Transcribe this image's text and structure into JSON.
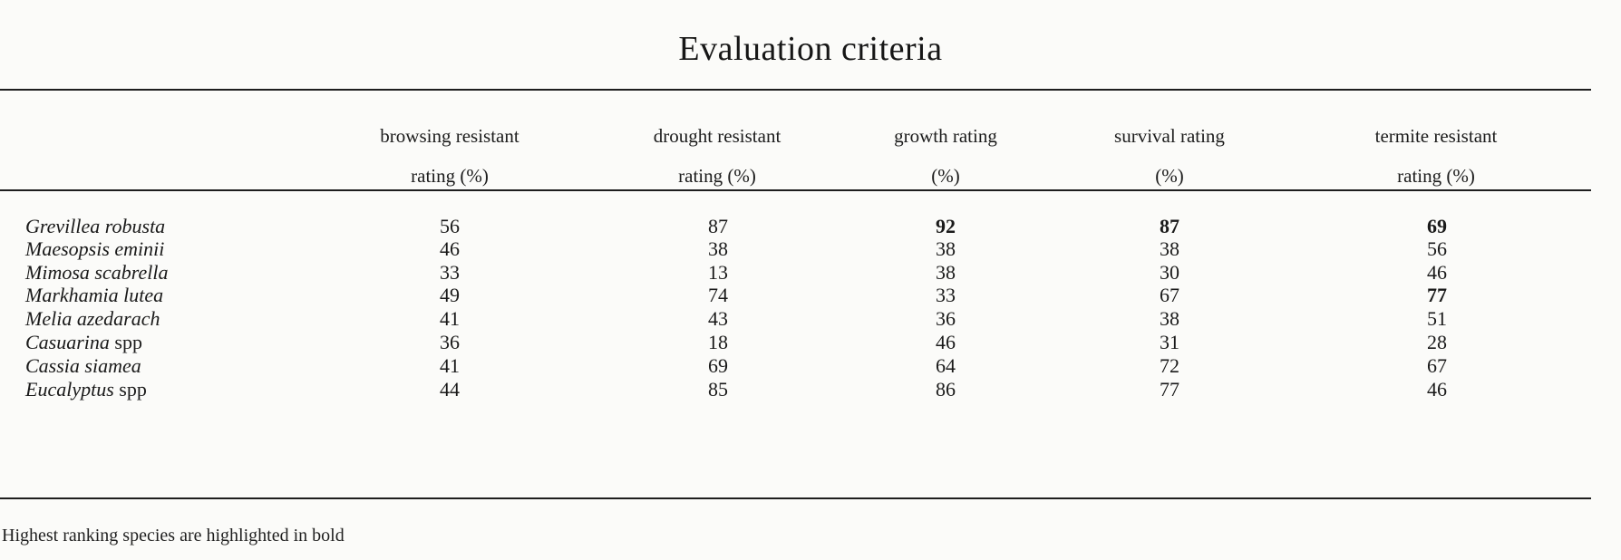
{
  "table": {
    "caption": "Evaluation criteria",
    "columns": [
      {
        "line1": "browsing resistant",
        "line2": "rating (%)"
      },
      {
        "line1": "drought resistant",
        "line2": "rating (%)"
      },
      {
        "line1": "growth rating",
        "line2": "(%)"
      },
      {
        "line1": "survival rating",
        "line2": "(%)"
      },
      {
        "line1": "termite resistant",
        "line2": "rating (%)"
      }
    ],
    "rows": [
      {
        "genus": "Grevillea robusta",
        "suffix": "",
        "values": [
          "56",
          "87",
          "92",
          "87",
          "69"
        ],
        "bold": [
          false,
          false,
          true,
          true,
          true
        ]
      },
      {
        "genus": "Maesopsis eminii",
        "suffix": "",
        "values": [
          "46",
          "38",
          "38",
          "38",
          "56"
        ],
        "bold": [
          false,
          false,
          false,
          false,
          false
        ]
      },
      {
        "genus": "Mimosa scabrella",
        "suffix": "",
        "values": [
          "33",
          "13",
          "38",
          "30",
          "46"
        ],
        "bold": [
          false,
          false,
          false,
          false,
          false
        ]
      },
      {
        "genus": "Markhamia lutea",
        "suffix": "",
        "values": [
          "49",
          "74",
          "33",
          "67",
          "77"
        ],
        "bold": [
          false,
          false,
          false,
          false,
          true
        ]
      },
      {
        "genus": "Melia azedarach",
        "suffix": "",
        "values": [
          "41",
          "43",
          "36",
          "38",
          "51"
        ],
        "bold": [
          false,
          false,
          false,
          false,
          false
        ]
      },
      {
        "genus": "Casuarina",
        "suffix": "spp",
        "values": [
          "36",
          "18",
          "46",
          "31",
          "28"
        ],
        "bold": [
          false,
          false,
          false,
          false,
          false
        ]
      },
      {
        "genus": "Cassia siamea",
        "suffix": "",
        "values": [
          "41",
          "69",
          "64",
          "72",
          "67"
        ],
        "bold": [
          false,
          false,
          false,
          false,
          false
        ]
      },
      {
        "genus": "Eucalyptus",
        "suffix": "spp",
        "values": [
          "44",
          "85",
          "86",
          "77",
          "46"
        ],
        "bold": [
          false,
          false,
          false,
          false,
          false
        ]
      }
    ],
    "footnote": "Highest ranking species are highlighted in bold"
  }
}
